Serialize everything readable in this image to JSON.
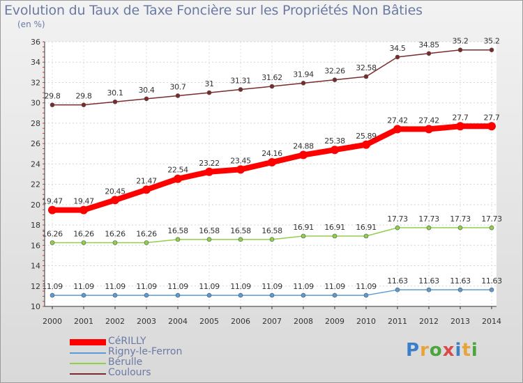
{
  "title": "Evolution du Taux de Taxe Foncière sur les Propriétés Non Bâties",
  "unit": "(en %)",
  "logo": {
    "text": "Proxiti",
    "colors": [
      "#3d7ec9",
      "#e8a33a",
      "#4aa63c",
      "#d94a4a",
      "#3d7ec9",
      "#e8a33a",
      "#4aa63c"
    ]
  },
  "chart_data": {
    "type": "line",
    "title": "Evolution du Taux de Taxe Foncière sur les Propriétés Non Bâties",
    "ylabel": "(en %)",
    "xlabel": "",
    "ylim": [
      10,
      36
    ],
    "yticks": [
      10,
      12,
      14,
      16,
      18,
      20,
      22,
      24,
      26,
      28,
      30,
      32,
      34,
      36
    ],
    "categories": [
      "2000",
      "2001",
      "2002",
      "2003",
      "2004",
      "2005",
      "2006",
      "2007",
      "2008",
      "2009",
      "2010",
      "2011",
      "2012",
      "2013",
      "2014"
    ],
    "series": [
      {
        "name": "Coulours",
        "color": "#7a2a2a",
        "values": [
          29.8,
          29.8,
          30.1,
          30.4,
          30.7,
          31,
          31.31,
          31.62,
          31.94,
          32.26,
          32.58,
          34.5,
          34.85,
          35.2,
          35.2
        ],
        "labels": [
          "29.8",
          "29.8",
          "30.1",
          "30.4",
          "30.7",
          "31",
          "31.31",
          "31.62",
          "31.94",
          "32.26",
          "32.58",
          "34.5",
          "34.85",
          "35.2",
          "35.2"
        ]
      },
      {
        "name": "CéRILLY",
        "color": "#ff0000",
        "values": [
          19.47,
          19.47,
          20.45,
          21.47,
          22.54,
          23.22,
          23.45,
          24.16,
          24.88,
          25.38,
          25.89,
          27.42,
          27.42,
          27.7,
          27.7
        ],
        "labels": [
          "19.47",
          "19.47",
          "20.45",
          "21.47",
          "22.54",
          "23.22",
          "23.45",
          "24.16",
          "24.88",
          "25.38",
          "25.89",
          "27.42",
          "27.42",
          "27.7",
          "27.7"
        ]
      },
      {
        "name": "Bérulle",
        "color": "#8fd04a",
        "values": [
          16.26,
          16.26,
          16.26,
          16.26,
          16.58,
          16.58,
          16.58,
          16.58,
          16.91,
          16.91,
          16.91,
          17.73,
          17.73,
          17.73,
          17.73
        ],
        "labels": [
          "16.26",
          "16.26",
          "16.26",
          "16.26",
          "16.58",
          "16.58",
          "16.58",
          "16.58",
          "16.91",
          "16.91",
          "16.91",
          "17.73",
          "17.73",
          "17.73",
          "17.73"
        ]
      },
      {
        "name": "Rigny-le-Ferron",
        "color": "#5a9bd5",
        "values": [
          11.09,
          11.09,
          11.09,
          11.09,
          11.09,
          11.09,
          11.09,
          11.09,
          11.09,
          11.09,
          11.09,
          11.63,
          11.63,
          11.63,
          11.63
        ],
        "labels": [
          "11.09",
          "11.09",
          "11.09",
          "11.09",
          "11.09",
          "11.09",
          "11.09",
          "11.09",
          "11.09",
          "11.09",
          "11.09",
          "11.63",
          "11.63",
          "11.63",
          "11.63"
        ]
      }
    ],
    "legend": [
      {
        "name": "CéRILLY",
        "color": "#ff0000"
      },
      {
        "name": "Rigny-le-Ferron",
        "color": "#5a9bd5"
      },
      {
        "name": "Bérulle",
        "color": "#8fd04a"
      },
      {
        "name": "Coulours",
        "color": "#7a2a2a"
      }
    ]
  }
}
